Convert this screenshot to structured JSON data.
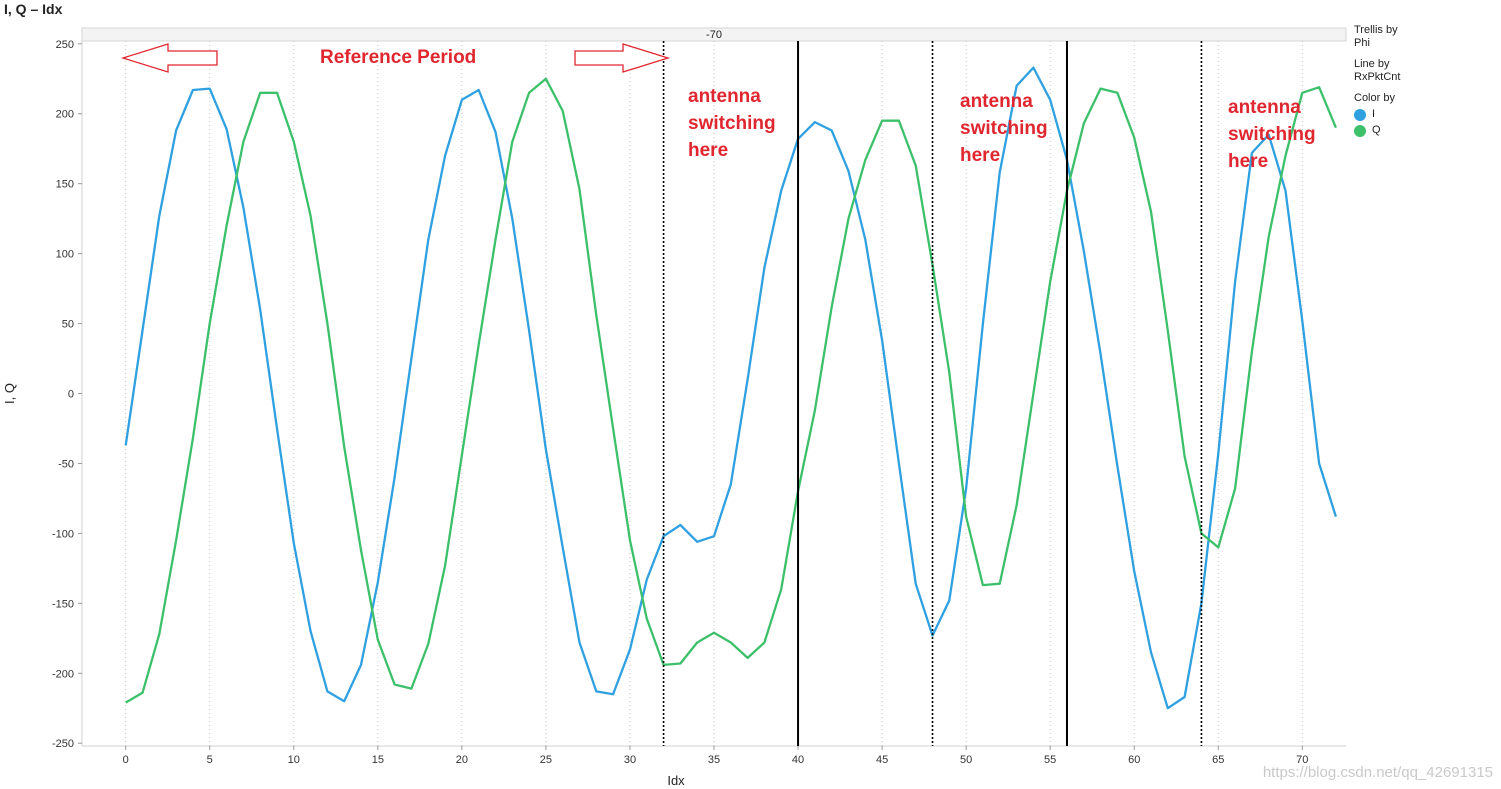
{
  "title": "I, Q – Idx",
  "legend": {
    "trellis_label": "Trellis by",
    "trellis_value": "Phi",
    "line_label": "Line by",
    "line_value": "RxPktCnt",
    "color_label": "Color by",
    "items": [
      {
        "name": "I",
        "color": "#2fa0e0"
      },
      {
        "name": "Q",
        "color": "#3cc06a"
      }
    ]
  },
  "watermark": "https://blog.csdn.net/qq_42691315",
  "annotations": {
    "reference": "Reference Period",
    "switch": [
      [
        "antenna",
        "switching",
        "here"
      ],
      [
        "antenna",
        "switching",
        "here"
      ],
      [
        "antenna",
        "switching",
        "here"
      ]
    ]
  },
  "chart_data": {
    "type": "line",
    "title": "I, Q – Idx",
    "trellis_header": "-70",
    "xlabel": "Idx",
    "ylabel": "I, Q",
    "xlim": [
      -2.6,
      72.6
    ],
    "ylim": [
      -252,
      252
    ],
    "xticks": [
      0,
      5,
      10,
      15,
      20,
      25,
      30,
      35,
      40,
      45,
      50,
      55,
      60,
      65,
      70
    ],
    "yticks": [
      250,
      200,
      150,
      100,
      50,
      0,
      -50,
      -100,
      -150,
      -200,
      -250
    ],
    "grid": "vertical dotted",
    "legend": "right",
    "x": [
      0,
      1,
      2,
      3,
      4,
      5,
      6,
      7,
      8,
      9,
      10,
      11,
      12,
      13,
      14,
      15,
      16,
      17,
      18,
      19,
      20,
      21,
      22,
      23,
      24,
      25,
      26,
      27,
      28,
      29,
      30,
      31,
      32,
      33,
      34,
      35,
      36,
      37,
      38,
      39,
      40,
      41,
      42,
      43,
      44,
      45,
      46,
      47,
      48,
      49,
      50,
      51,
      52,
      53,
      54,
      55,
      56,
      57,
      58,
      59,
      60,
      61,
      62,
      63,
      64,
      65,
      66,
      67,
      68,
      69,
      70,
      71,
      72
    ],
    "series": [
      {
        "name": "I",
        "color": "#2fa0e0",
        "values": [
          -37,
          45,
          127,
          188,
          217,
          218,
          189,
          133,
          60,
          -25,
          -107,
          -170,
          -213,
          -220,
          -194,
          -135,
          -60,
          25,
          110,
          170,
          210,
          217,
          187,
          125,
          45,
          -40,
          -110,
          -178,
          -213,
          -215,
          -183,
          -133,
          -102,
          -94,
          -106,
          -102,
          -65,
          10,
          90,
          145,
          182,
          194,
          188,
          159,
          110,
          38,
          -50,
          -136,
          -173,
          -148,
          -68,
          50,
          158,
          220,
          233,
          210,
          167,
          102,
          28,
          -52,
          -127,
          -185,
          -225,
          -217,
          -150,
          -43,
          80,
          172,
          185,
          145,
          52,
          -50,
          -88
        ]
      },
      {
        "name": "Q",
        "color": "#3cc06a",
        "values": [
          -221,
          -214,
          -172,
          -105,
          -32,
          50,
          120,
          180,
          215,
          215,
          180,
          127,
          50,
          -38,
          -112,
          -176,
          -208,
          -211,
          -179,
          -123,
          -44,
          35,
          110,
          180,
          215,
          225,
          202,
          146,
          56,
          -25,
          -105,
          -161,
          -194,
          -193,
          -178,
          -171,
          -178,
          -189,
          -178,
          -140,
          -70,
          -12,
          62,
          125,
          167,
          195,
          195,
          163,
          92,
          15,
          -88,
          -137,
          -136,
          -80,
          0,
          80,
          145,
          193,
          218,
          215,
          183,
          130,
          45,
          -45,
          -100,
          -110,
          -68,
          30,
          112,
          170,
          215,
          219,
          190
        ]
      }
    ],
    "vlines_dotted": [
      32,
      48,
      64
    ],
    "vlines_solid": [
      40,
      56
    ]
  }
}
